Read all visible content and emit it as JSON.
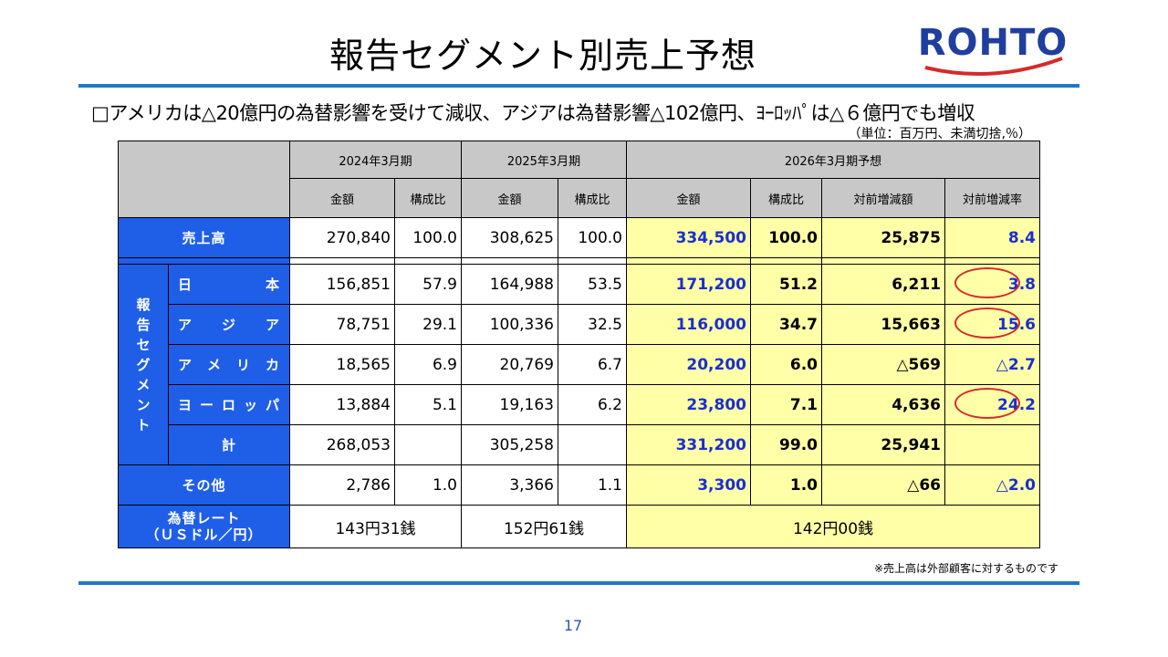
{
  "title": "報告セグメント別売上予想",
  "logo": {
    "text": "ROHTO",
    "colors": {
      "text": "#1f3f9e",
      "swoosh": "#d62a2a"
    }
  },
  "headline": "□アメリカは△20億円の為替影響を受けて減収、アジアは為替影響△102億円、ﾖｰﾛｯﾊﾟは△６億円でも増収",
  "unit_note": "（単位：百万円、未満切捨,％）",
  "table": {
    "periods": [
      "2024年3月期",
      "2025年3月期",
      "2026年3月期予想"
    ],
    "col_headers": {
      "amount": "金額",
      "ratio": "構成比",
      "yoy_amount": "対前増減額",
      "yoy_rate": "対前増減率"
    },
    "segment_group_label": "報告セグメント",
    "rows": {
      "sales": {
        "label": "売上高",
        "v2024": "270,840",
        "r2024": "100.0",
        "v2025": "308,625",
        "r2025": "100.0",
        "v2026": "334,500",
        "r2026": "100.0",
        "chg": "25,875",
        "rate": "8.4"
      },
      "japan": {
        "label": [
          "日",
          "本"
        ],
        "v2024": "156,851",
        "r2024": "57.9",
        "v2025": "164,988",
        "r2025": "53.5",
        "v2026": "171,200",
        "r2026": "51.2",
        "chg": "6,211",
        "rate": "3.8"
      },
      "asia": {
        "label": [
          "ア",
          "ジ",
          "ア"
        ],
        "v2024": "78,751",
        "r2024": "29.1",
        "v2025": "100,336",
        "r2025": "32.5",
        "v2026": "116,000",
        "r2026": "34.7",
        "chg": "15,663",
        "rate": "15.6"
      },
      "america": {
        "label": [
          "ア",
          "メ",
          "リ",
          "カ"
        ],
        "v2024": "18,565",
        "r2024": "6.9",
        "v2025": "20,769",
        "r2025": "6.7",
        "v2026": "20,200",
        "r2026": "6.0",
        "chg": "△569",
        "rate": "△2.7"
      },
      "europe": {
        "label": [
          "ヨ",
          "ー",
          "ロ",
          "ッ",
          "パ"
        ],
        "v2024": "13,884",
        "r2024": "5.1",
        "v2025": "19,163",
        "r2025": "6.2",
        "v2026": "23,800",
        "r2026": "7.1",
        "chg": "4,636",
        "rate": "24.2"
      },
      "total": {
        "label": "計",
        "v2024": "268,053",
        "v2025": "305,258",
        "v2026": "331,200",
        "r2026": "99.0",
        "chg": "25,941"
      },
      "other": {
        "label": "その他",
        "v2024": "2,786",
        "r2024": "1.0",
        "v2025": "3,366",
        "r2025": "1.1",
        "v2026": "3,300",
        "r2026": "1.0",
        "chg": "△66",
        "rate": "△2.0"
      },
      "fx": {
        "label1": "為替レート",
        "label2": "（ＵＳドル／円）",
        "v2024": "143円31銭",
        "v2025": "152円61銭",
        "v2026": "142円00銭"
      }
    },
    "highlighted_rates": [
      "3.8",
      "15.6",
      "24.2"
    ],
    "colors": {
      "header_gray": "#c8c8c8",
      "segment_blue": "#1f5fe8",
      "forecast_yellow": "#ffffa8",
      "forecast_text_blue": "#1a2fd0",
      "circle_red": "#d62a2a"
    }
  },
  "footnote": "※売上高は外部顧客に対するものです",
  "page_number": "17"
}
